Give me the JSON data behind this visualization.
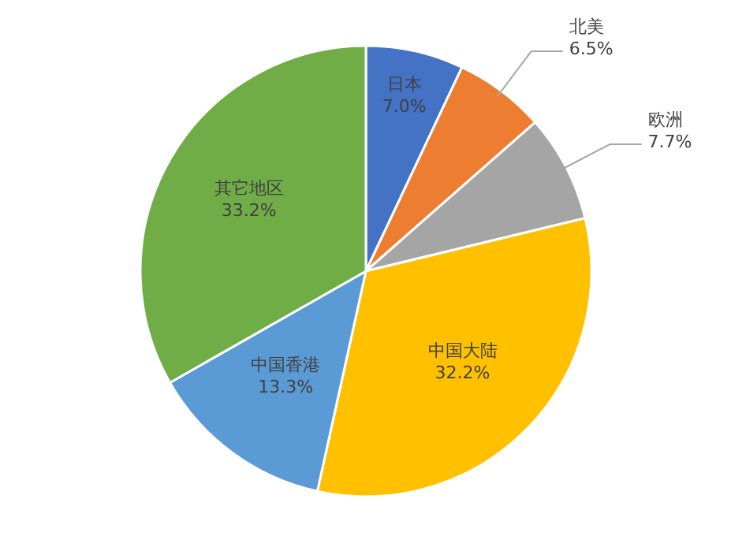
{
  "chart_data": {
    "type": "pie",
    "categories": [
      "日本",
      "北美",
      "欧洲",
      "中国大陆",
      "中国香港",
      "其它地区"
    ],
    "values": [
      7.0,
      6.5,
      7.7,
      32.2,
      13.3,
      33.2
    ],
    "value_labels": [
      "7.0%",
      "6.5%",
      "7.7%",
      "32.2%",
      "13.3%",
      "33.2%"
    ],
    "colors": [
      "#4472c4",
      "#ed7d31",
      "#a5a5a5",
      "#ffc000",
      "#5b9bd5",
      "#70ad47"
    ],
    "legend": false
  }
}
